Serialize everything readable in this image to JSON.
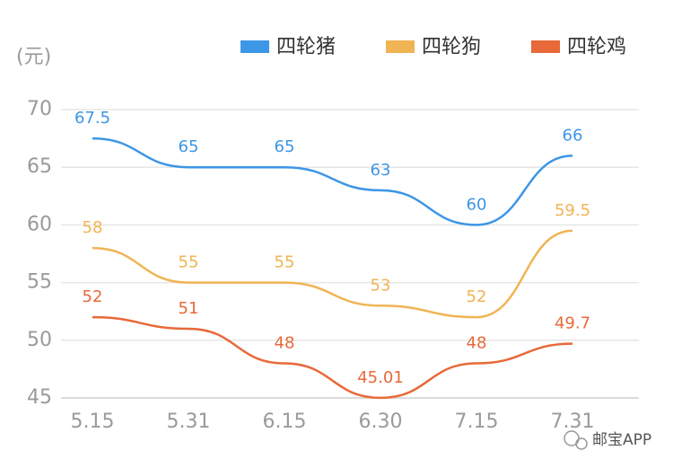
{
  "chart_data": {
    "type": "line",
    "y_unit": "(元)",
    "categories": [
      "5.15",
      "5.31",
      "6.15",
      "6.30",
      "7.15",
      "7.31"
    ],
    "series": [
      {
        "name": "四轮猪",
        "color": "#3d96e6",
        "values": [
          67.5,
          65,
          65,
          63,
          60,
          66
        ]
      },
      {
        "name": "四轮狗",
        "color": "#f0b454",
        "values": [
          58,
          55,
          55,
          53,
          52,
          59.5
        ]
      },
      {
        "name": "四轮鸡",
        "color": "#e8693a",
        "values": [
          52,
          51,
          48,
          45.01,
          48,
          49.7
        ]
      }
    ],
    "ylim": [
      45,
      70
    ],
    "yticks": [
      45,
      50,
      55,
      60,
      65,
      70
    ],
    "grid": true,
    "legend": "top-right",
    "watermark": "邮宝APP"
  }
}
